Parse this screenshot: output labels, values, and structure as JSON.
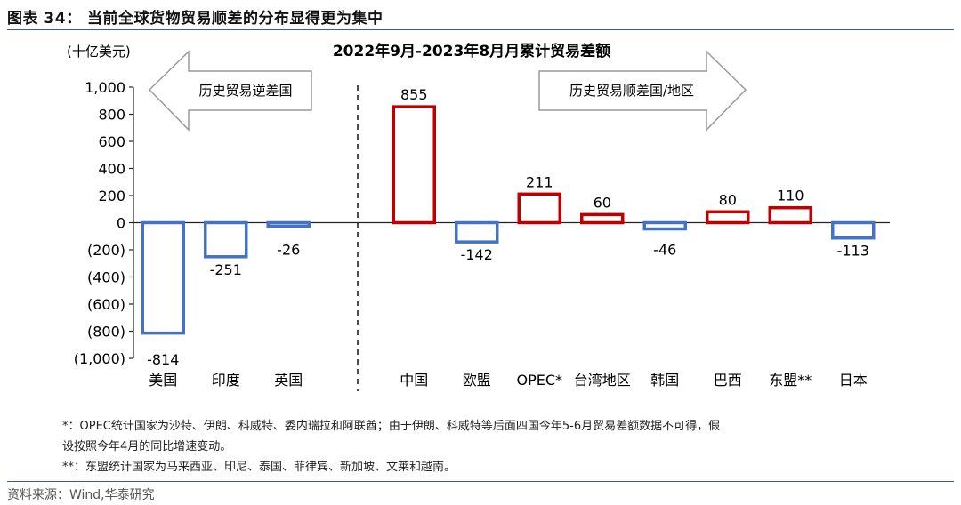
{
  "figure": {
    "title": "图表 34： 当前全球货物贸易顺差的分布显得更为集中",
    "source": "资料来源：Wind,华泰研究",
    "notes": [
      "*：OPEC统计国家为沙特、伊朗、科威特、委内瑞拉和阿联酋；由于伊朗、科威特等后面四国今年5-6月贸易差额数据不可得，假",
      "设按照今年4月的同比增速变动。",
      "**：东盟统计国家为马来西亚、印尼、泰国、菲律宾、新加坡、文莱和越南。"
    ]
  },
  "chart_data": {
    "type": "bar",
    "title": "2022年9月-2023年8月月累计贸易差额",
    "ylabel": "(十亿美元)",
    "ylim": [
      -1000,
      1000
    ],
    "yticks": [
      1000,
      800,
      600,
      400,
      200,
      0,
      -200,
      -400,
      -600,
      -800,
      -1000
    ],
    "ytick_labels": [
      "1,000",
      "800",
      "600",
      "400",
      "200",
      "0",
      "(200)",
      "(400)",
      "(600)",
      "(800)",
      "(1,000)"
    ],
    "categories": [
      "美国",
      "印度",
      "英国",
      "",
      "中国",
      "欧盟",
      "OPEC*",
      "台湾地区",
      "韩国",
      "巴西",
      "东盟**",
      "日本"
    ],
    "values": [
      -814,
      -251,
      -26,
      null,
      855,
      -142,
      211,
      60,
      -46,
      80,
      110,
      -113
    ],
    "data_labels": [
      "-814",
      "-251",
      "-26",
      "",
      "855",
      "-142",
      "211",
      "60",
      "-46",
      "80",
      "110",
      "-113"
    ],
    "colors": {
      "deficit": "#4472c4",
      "surplus": "#c00000"
    },
    "annotations": {
      "left_arrow": "历史贸易逆差国",
      "right_arrow": "历史贸易顺差国/地区"
    },
    "grid": false,
    "legend": "none"
  }
}
